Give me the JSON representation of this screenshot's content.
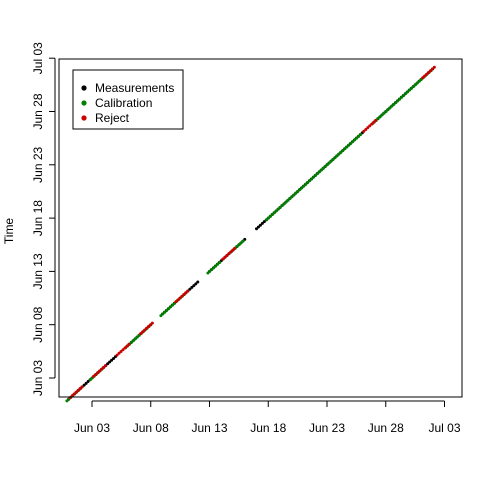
{
  "chart_data": {
    "type": "scatter",
    "title": "",
    "xlabel": "",
    "ylabel": "Time",
    "x_range": [
      "2021-05-31",
      "2021-07-04"
    ],
    "y_range": [
      "2021-05-31",
      "2021-07-04"
    ],
    "x_ticks": [
      "Jun 03",
      "Jun 08",
      "Jun 13",
      "Jun 18",
      "Jun 23",
      "Jun 28",
      "Jul 03"
    ],
    "y_ticks": [
      "Jun 03",
      "Jun 08",
      "Jun 13",
      "Jun 18",
      "Jun 23",
      "Jun 28",
      "Jul 03"
    ],
    "grid": false,
    "legend_position": "top-left",
    "legend": [
      {
        "label": "Measurements",
        "color": "#000000"
      },
      {
        "label": "Calibration",
        "color": "#008000"
      },
      {
        "label": "Reject",
        "color": "#cc0000"
      }
    ],
    "series": [
      {
        "name": "Measurements",
        "color": "#000000",
        "segments": [
          {
            "start": "2021-06-01",
            "end": "2021-06-02"
          },
          {
            "start": "2021-06-02",
            "end": "2021-06-05"
          },
          {
            "start": "2021-06-06",
            "end": "2021-06-08"
          },
          {
            "start": "2021-06-09",
            "end": "2021-06-10"
          },
          {
            "start": "2021-06-11",
            "end": "2021-06-12"
          },
          {
            "start": "2021-06-13",
            "end": "2021-06-15"
          },
          {
            "start": "2021-06-15",
            "end": "2021-06-16"
          },
          {
            "start": "2021-06-17",
            "end": "2021-06-26"
          },
          {
            "start": "2021-06-27",
            "end": "2021-07-02"
          }
        ]
      },
      {
        "name": "Calibration",
        "color": "#008000",
        "segments": [
          {
            "start": "2021-06-01",
            "end": "2021-06-02"
          },
          {
            "start": "2021-06-03",
            "end": "2021-06-04"
          },
          {
            "start": "2021-06-06",
            "end": "2021-06-08"
          },
          {
            "start": "2021-06-09",
            "end": "2021-06-11"
          },
          {
            "start": "2021-06-13",
            "end": "2021-06-14"
          },
          {
            "start": "2021-06-15",
            "end": "2021-06-16"
          },
          {
            "start": "2021-06-18",
            "end": "2021-06-26"
          },
          {
            "start": "2021-06-27",
            "end": "2021-07-02"
          }
        ]
      },
      {
        "name": "Reject",
        "color": "#cc0000",
        "segments": [
          {
            "start": "2021-06-01",
            "end": "2021-06-02"
          },
          {
            "start": "2021-06-03",
            "end": "2021-06-04"
          },
          {
            "start": "2021-06-05",
            "end": "2021-06-06"
          },
          {
            "start": "2021-06-07",
            "end": "2021-06-08"
          },
          {
            "start": "2021-06-10",
            "end": "2021-06-11"
          },
          {
            "start": "2021-06-14",
            "end": "2021-06-15"
          },
          {
            "start": "2021-06-26",
            "end": "2021-06-27"
          },
          {
            "start": "2021-07-01",
            "end": "2021-07-02"
          }
        ]
      }
    ]
  }
}
